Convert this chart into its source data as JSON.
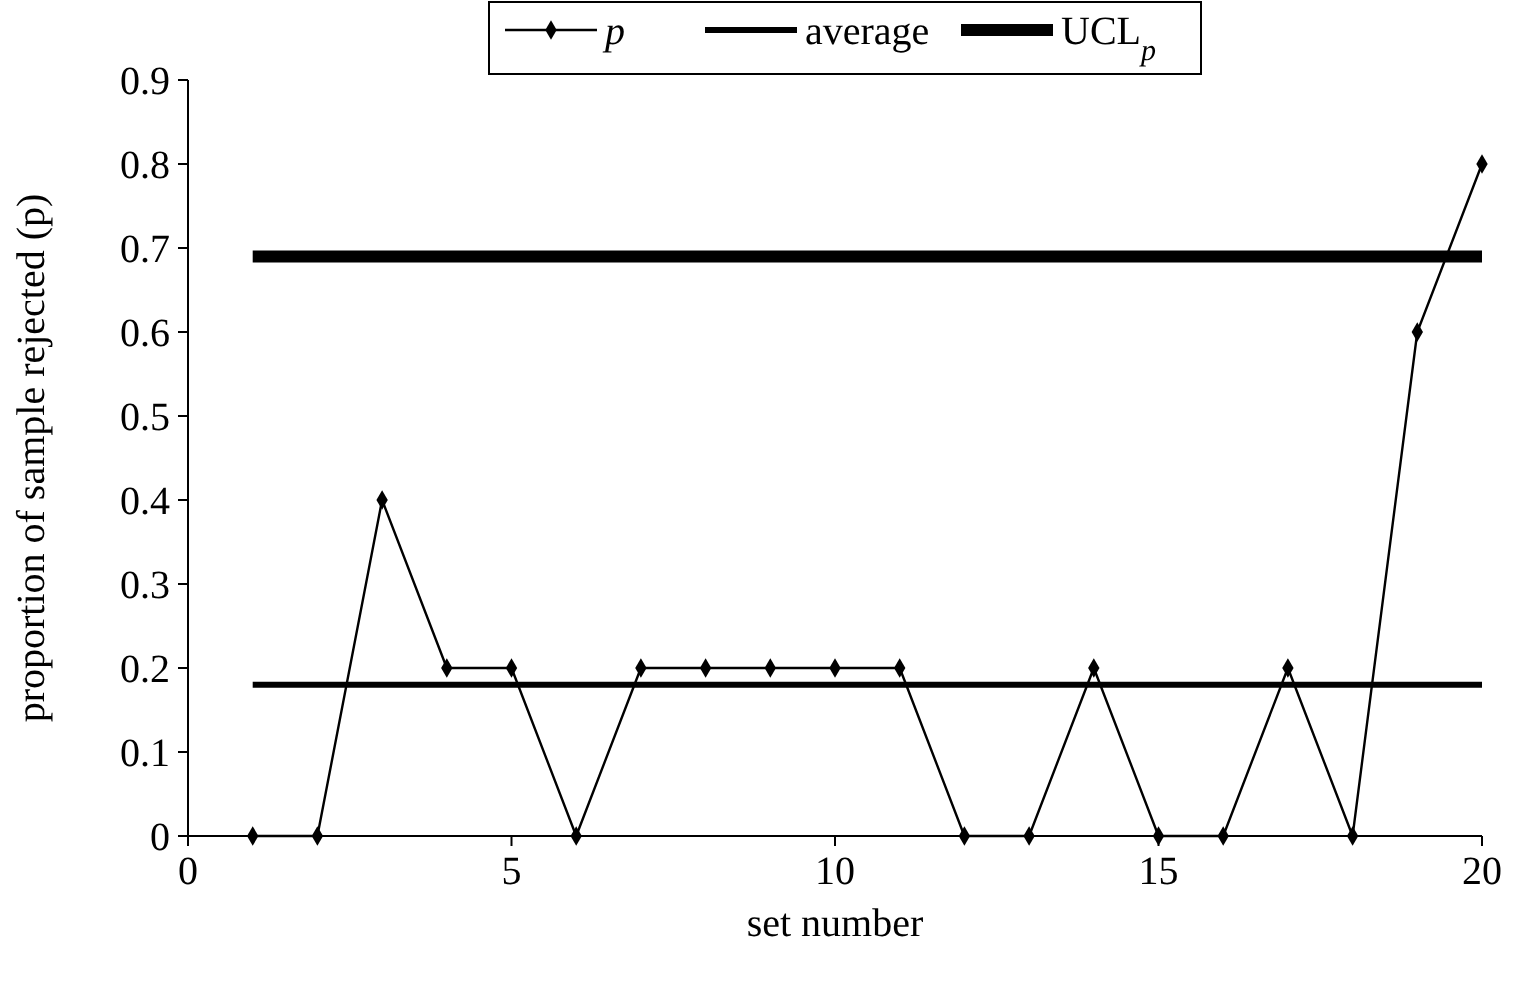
{
  "chart_data": {
    "type": "line",
    "xlabel": "set number",
    "ylabel": "proportion of sample rejected (p)",
    "xlim": [
      0,
      20
    ],
    "xticks": [
      0,
      5,
      10,
      15,
      20
    ],
    "ylim": [
      0,
      0.9
    ],
    "yticks": [
      0,
      0.1,
      0.2,
      0.3,
      0.4,
      0.5,
      0.6,
      0.7,
      0.8,
      0.9
    ],
    "legend": "top",
    "grid": false,
    "series": [
      {
        "name": "p",
        "color": "#000000",
        "marker": "diamond",
        "x": [
          1,
          2,
          3,
          4,
          5,
          6,
          7,
          8,
          9,
          10,
          11,
          12,
          13,
          14,
          15,
          16,
          17,
          18,
          19,
          20
        ],
        "values": [
          0,
          0,
          0.4,
          0.2,
          0.2,
          0,
          0.2,
          0.2,
          0.2,
          0.2,
          0.2,
          0,
          0,
          0.2,
          0,
          0,
          0.2,
          0,
          0.6,
          0.8
        ]
      },
      {
        "name": "average",
        "color": "#000000",
        "marker": "none",
        "x": [
          1,
          20
        ],
        "values": [
          0.18,
          0.18
        ]
      },
      {
        "name": "UCL$_{p}$",
        "color": "#000000",
        "marker": "none",
        "x": [
          1,
          20
        ],
        "values": [
          0.69,
          0.69
        ]
      }
    ]
  }
}
